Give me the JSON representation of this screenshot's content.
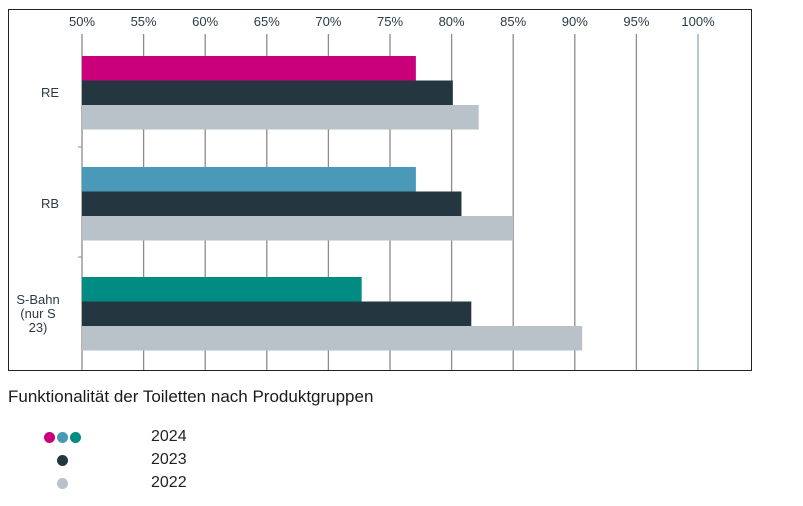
{
  "chart_data": {
    "type": "bar",
    "orientation": "horizontal",
    "title": "Funktionalität der Toiletten nach Produktgruppen",
    "categories": [
      {
        "label_lines": [
          "RE"
        ]
      },
      {
        "label_lines": [
          "RB"
        ]
      },
      {
        "label_lines": [
          "S-Bahn",
          "(nur S",
          "23)"
        ]
      }
    ],
    "series": [
      {
        "name": "2024",
        "values": [
          77.1,
          77.1,
          72.7
        ],
        "colors": [
          "#c9007a",
          "#4a99b8",
          "#008c82"
        ]
      },
      {
        "name": "2023",
        "values": [
          80.1,
          80.8,
          81.6
        ],
        "color": "#243640"
      },
      {
        "name": "2022",
        "values": [
          82.2,
          85.0,
          90.6
        ],
        "color": "#b9c2c9"
      }
    ],
    "xlim": [
      50,
      100
    ],
    "xticks": [
      "50%",
      "55%",
      "60%",
      "65%",
      "70%",
      "75%",
      "80%",
      "85%",
      "90%",
      "95%",
      "100%"
    ],
    "grid": true
  },
  "legend": [
    {
      "label": "2024",
      "colors": [
        "#c9007a",
        "#4a99b8",
        "#008c82"
      ]
    },
    {
      "label": "2023",
      "colors": [
        "#243640"
      ]
    },
    {
      "label": "2022",
      "colors": [
        "#b9c2c9"
      ]
    }
  ]
}
